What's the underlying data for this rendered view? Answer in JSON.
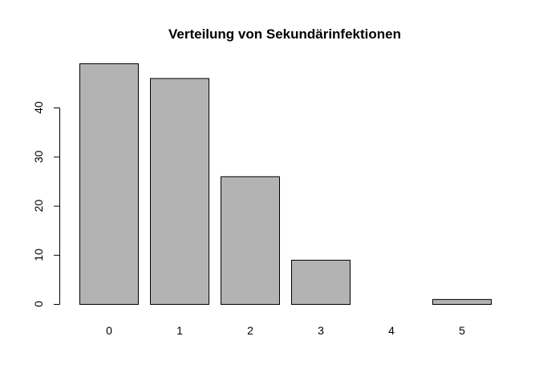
{
  "chart_data": {
    "type": "bar",
    "title": "Verteilung von Sekundärinfektionen",
    "xlabel": "",
    "ylabel": "",
    "categories": [
      "0",
      "1",
      "2",
      "3",
      "4",
      "5"
    ],
    "values": [
      49,
      46,
      26,
      9,
      0,
      1
    ],
    "ylim": [
      0,
      49
    ],
    "y_ticks": [
      "0",
      "10",
      "20",
      "30",
      "40"
    ],
    "grid": false,
    "legend": "none",
    "colors": {
      "bar_fill": "#b3b3b3",
      "bar_stroke": "#000000",
      "axis": "#000000",
      "background": "#ffffff"
    }
  }
}
